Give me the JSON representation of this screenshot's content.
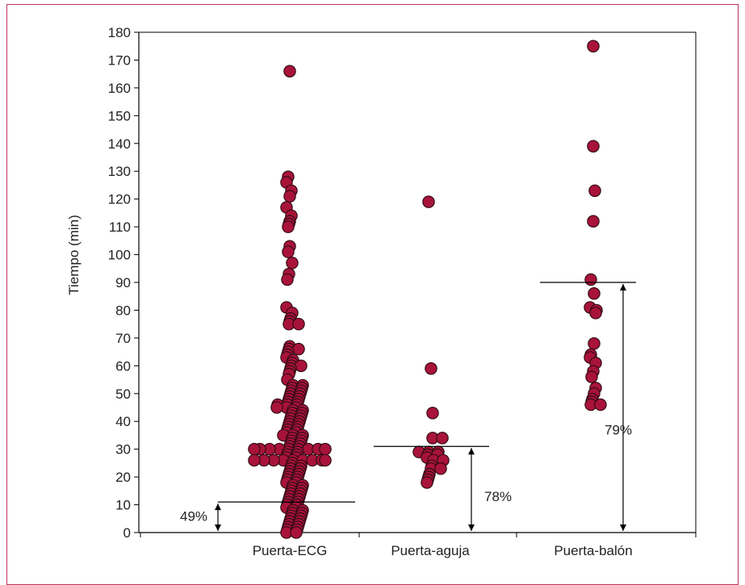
{
  "chart_data": {
    "type": "scatter",
    "title": "",
    "ylabel": "Tiempo (min)",
    "ylim": [
      0,
      180
    ],
    "yticks": [
      0,
      10,
      20,
      30,
      40,
      50,
      60,
      70,
      80,
      90,
      100,
      110,
      120,
      130,
      140,
      150,
      160,
      170,
      180
    ],
    "grid": false,
    "colors": {
      "point": "#a8133a",
      "point_stroke": "#2a0a12",
      "axis": "#000000"
    },
    "categories": [
      "Puerta-ECG",
      "Puerta-aguja",
      "Puerta-balón"
    ],
    "series": [
      {
        "category": "Puerta-ECG",
        "threshold": 11,
        "percent_label": "49%",
        "values": [
          166,
          128,
          126,
          123,
          121,
          117,
          114,
          112,
          111,
          110,
          103,
          101,
          97,
          93,
          91,
          81,
          79,
          77,
          76,
          75,
          75,
          67,
          66,
          66,
          65,
          64,
          63,
          62,
          61,
          60,
          60,
          59,
          58,
          57,
          55,
          53,
          53,
          52,
          52,
          51,
          51,
          50,
          50,
          49,
          49,
          48,
          48,
          47,
          47,
          46,
          46,
          46,
          45,
          45,
          45,
          44,
          44,
          43,
          43,
          42,
          42,
          41,
          41,
          40,
          40,
          39,
          39,
          38,
          38,
          37,
          37,
          36,
          36,
          35,
          35,
          35,
          34,
          34,
          33,
          33,
          32,
          32,
          31,
          31,
          30,
          30,
          30,
          30,
          30,
          30,
          30,
          30,
          30,
          29,
          29,
          28,
          28,
          27,
          27,
          26,
          26,
          26,
          26,
          26,
          26,
          26,
          26,
          26,
          25,
          24,
          24,
          23,
          23,
          22,
          22,
          21,
          21,
          20,
          20,
          19,
          19,
          18,
          18,
          17,
          17,
          16,
          16,
          15,
          15,
          14,
          14,
          13,
          13,
          12,
          12,
          11,
          11,
          10,
          10,
          9,
          9,
          8,
          8,
          7,
          7,
          6,
          6,
          5,
          5,
          4,
          4,
          3,
          3,
          2,
          2,
          1,
          1,
          0,
          0
        ]
      },
      {
        "category": "Puerta-aguja",
        "threshold": 31,
        "percent_label": "78%",
        "values": [
          119,
          59,
          43,
          34,
          34,
          29,
          29,
          29,
          28,
          28,
          27,
          26,
          26,
          24,
          23,
          23,
          21,
          20,
          19,
          18
        ]
      },
      {
        "category": "Puerta-balón",
        "threshold": 90,
        "percent_label": "79%",
        "values": [
          175,
          139,
          123,
          112,
          91,
          86,
          81,
          80,
          79,
          68,
          64,
          63,
          61,
          58,
          56,
          52,
          50,
          48,
          47,
          46,
          46
        ]
      }
    ]
  }
}
